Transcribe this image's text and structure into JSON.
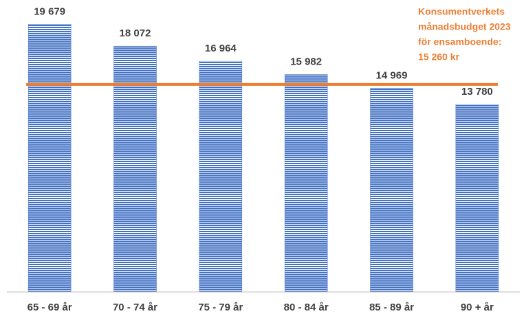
{
  "chart_data": {
    "type": "bar",
    "categories": [
      "65 - 69 år",
      "70 - 74 år",
      "75 - 79 år",
      "80 - 84 år",
      "85 - 89 år",
      "90 + år"
    ],
    "values": [
      19679,
      18072,
      16964,
      15982,
      14969,
      13780
    ],
    "value_labels": [
      "19 679",
      "18 072",
      "16 964",
      "15 982",
      "14 969",
      "13 780"
    ],
    "color": "#4472c4",
    "ylim": [
      0,
      20000
    ],
    "reference_line": {
      "value": 15260,
      "color": "#ed7d31",
      "annotation": [
        "Konsumentverkets",
        "månadsbudget 2023",
        "för ensamboende:",
        "15 260 kr"
      ]
    }
  }
}
